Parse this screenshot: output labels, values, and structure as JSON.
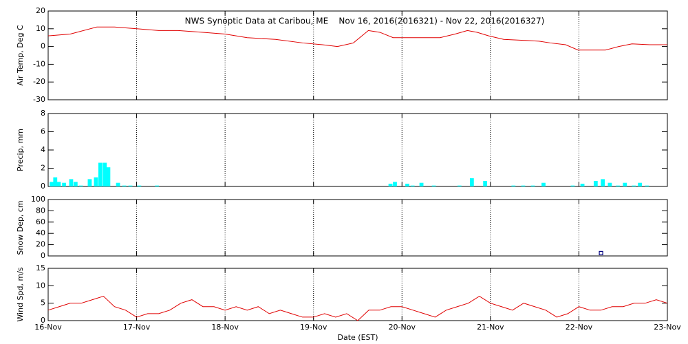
{
  "chart_data": [
    {
      "type": "line",
      "title": "NWS Synoptic Data at Caribou, ME    Nov 16, 2016(2016321) - Nov 22, 2016(2016327)",
      "ylabel": "Air Temp, Deg C",
      "ylim": [
        -30,
        20
      ],
      "yticks": [
        -30,
        -20,
        -10,
        0,
        10,
        20
      ],
      "xlim": [
        0,
        7
      ],
      "grid": "x",
      "series": [
        {
          "name": "Air Temp",
          "color": "#e00000",
          "x": [
            0,
            0.25,
            0.55,
            0.75,
            1,
            1.25,
            1.47,
            1.75,
            2,
            2.25,
            2.57,
            2.88,
            3.1,
            3.27,
            3.45,
            3.62,
            3.75,
            3.9,
            4.15,
            4.43,
            4.6,
            4.74,
            4.85,
            4.98,
            5.15,
            5.37,
            5.55,
            5.68,
            5.85,
            5.99,
            6.15,
            6.3,
            6.45,
            6.6,
            6.8,
            7
          ],
          "values": [
            6,
            7,
            11,
            11,
            10,
            9,
            9,
            8,
            7,
            5,
            4,
            2,
            1,
            0,
            2,
            9,
            8,
            5,
            5,
            5,
            7,
            9,
            8,
            6,
            4,
            3.5,
            3,
            2,
            1,
            -2,
            -2,
            -2,
            0,
            1.5,
            1,
            1
          ]
        }
      ]
    },
    {
      "type": "bar",
      "ylabel": "Precip, mm",
      "ylim": [
        0,
        8
      ],
      "yticks": [
        0,
        2,
        4,
        6,
        8
      ],
      "xlim": [
        0,
        7
      ],
      "grid": "x",
      "bar_width": 0.045,
      "series": [
        {
          "name": "Precip",
          "color": "#00ffff",
          "x": [
            0.04,
            0.08,
            0.12,
            0.18,
            0.26,
            0.31,
            0.37,
            0.47,
            0.54,
            0.59,
            0.64,
            0.68,
            0.79,
            0.86,
            0.93,
            1.03,
            1.23,
            3.87,
            3.92,
            4.06,
            4.12,
            4.22,
            4.36,
            4.65,
            4.79,
            4.94,
            5.26,
            5.37,
            5.48,
            5.6,
            5.93,
            6.04,
            6.19,
            6.27,
            6.35,
            6.44,
            6.52,
            6.62,
            6.69,
            6.77
          ],
          "values": [
            0.5,
            1.0,
            0.5,
            0.4,
            0.8,
            0.5,
            0.1,
            0.8,
            1.0,
            2.6,
            2.6,
            2.1,
            0.4,
            0.1,
            0.1,
            0.1,
            0.1,
            0.3,
            0.5,
            0.3,
            0.1,
            0.4,
            0.1,
            0.1,
            0.9,
            0.6,
            0.1,
            0.1,
            0.1,
            0.4,
            0.1,
            0.3,
            0.6,
            0.8,
            0.4,
            0.1,
            0.4,
            0.1,
            0.4,
            0.1
          ]
        }
      ]
    },
    {
      "type": "scatter",
      "ylabel": "Snow Dep, cm",
      "ylim": [
        0,
        100
      ],
      "yticks": [
        0,
        20,
        40,
        60,
        80,
        100
      ],
      "xlim": [
        0,
        7
      ],
      "grid": "x",
      "series": [
        {
          "name": "Snow Depth",
          "color": "#000080",
          "x": [
            6.25
          ],
          "values": [
            5
          ]
        }
      ]
    },
    {
      "type": "line",
      "ylabel": "Wind Spd, m/s",
      "xlabel": "Date (EST)",
      "ylim": [
        0,
        15
      ],
      "yticks": [
        0,
        5,
        10,
        15
      ],
      "xlim": [
        0,
        7
      ],
      "grid": "x",
      "xticks": [
        {
          "value": 0,
          "label": "16-Nov"
        },
        {
          "value": 1,
          "label": "17-Nov"
        },
        {
          "value": 2,
          "label": "18-Nov"
        },
        {
          "value": 3,
          "label": "19-Nov"
        },
        {
          "value": 4,
          "label": "20-Nov"
        },
        {
          "value": 5,
          "label": "21-Nov"
        },
        {
          "value": 6,
          "label": "22-Nov"
        },
        {
          "value": 7,
          "label": "23-Nov"
        }
      ],
      "series": [
        {
          "name": "Wind Speed",
          "color": "#e00000",
          "x": [
            0,
            0.125,
            0.25,
            0.375,
            0.5,
            0.625,
            0.75,
            0.875,
            1,
            1.125,
            1.25,
            1.375,
            1.5,
            1.625,
            1.75,
            1.875,
            2,
            2.125,
            2.25,
            2.375,
            2.5,
            2.625,
            2.75,
            2.875,
            3,
            3.125,
            3.25,
            3.375,
            3.5,
            3.625,
            3.75,
            3.875,
            4,
            4.125,
            4.25,
            4.375,
            4.5,
            4.625,
            4.75,
            4.875,
            5,
            5.125,
            5.25,
            5.375,
            5.5,
            5.625,
            5.75,
            5.875,
            6,
            6.125,
            6.25,
            6.375,
            6.5,
            6.625,
            6.75,
            6.875,
            7
          ],
          "values": [
            3,
            4,
            5,
            5,
            6,
            7,
            4,
            3,
            1,
            2,
            2,
            3,
            5,
            6,
            4,
            4,
            3,
            4,
            3,
            4,
            2,
            3,
            2,
            1,
            1,
            2,
            1,
            2,
            0,
            3,
            3,
            4,
            4,
            3,
            2,
            1,
            3,
            4,
            5,
            7,
            5,
            4,
            3,
            5,
            4,
            3,
            1,
            2,
            4,
            3,
            3,
            4,
            4,
            5,
            5,
            6,
            5
          ]
        }
      ]
    }
  ]
}
